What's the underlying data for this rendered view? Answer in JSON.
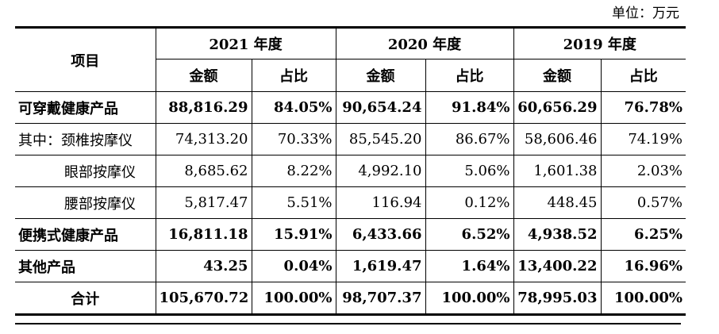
{
  "unit_label": "单位：万元",
  "header": {
    "item": "项目",
    "years": [
      "2021 年度",
      "2020 年度",
      "2019 年度"
    ],
    "amount": "金额",
    "ratio": "占比"
  },
  "rows": [
    {
      "label": "可穿戴健康产品",
      "v": [
        "88,816.29",
        "84.05%",
        "90,654.24",
        "91.84%",
        "60,656.29",
        "76.78%"
      ]
    },
    {
      "label": "其中：颈椎按摩仪",
      "v": [
        "74,313.20",
        "70.33%",
        "85,545.20",
        "86.67%",
        "58,606.46",
        "74.19%"
      ]
    },
    {
      "label": "眼部按摩仪",
      "v": [
        "8,685.62",
        "8.22%",
        "4,992.10",
        "5.06%",
        "1,601.38",
        "2.03%"
      ]
    },
    {
      "label": "腰部按摩仪",
      "v": [
        "5,817.47",
        "5.51%",
        "116.94",
        "0.12%",
        "448.45",
        "0.57%"
      ]
    },
    {
      "label": "便携式健康产品",
      "v": [
        "16,811.18",
        "15.91%",
        "6,433.66",
        "6.52%",
        "4,938.52",
        "6.25%"
      ]
    },
    {
      "label": "其他产品",
      "v": [
        "43.25",
        "0.04%",
        "1,619.47",
        "1.64%",
        "13,400.22",
        "16.96%"
      ]
    },
    {
      "label": "合计",
      "v": [
        "105,670.72",
        "100.00%",
        "98,707.37",
        "100.00%",
        "78,995.03",
        "100.00%"
      ]
    }
  ]
}
